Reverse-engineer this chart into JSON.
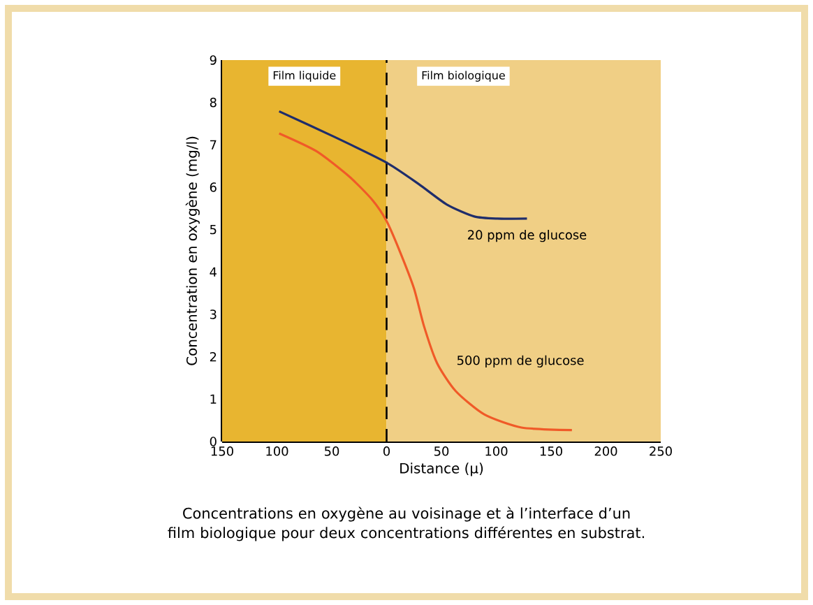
{
  "chart_data": {
    "type": "line",
    "xlabel": "Distance (µ)",
    "ylabel": "Concentration en oxygène (mg/l)",
    "xlim": [
      -150,
      250
    ],
    "xticks": [
      {
        "value": -150,
        "label": "150"
      },
      {
        "value": -100,
        "label": "100"
      },
      {
        "value": -50,
        "label": "50"
      },
      0,
      50,
      100,
      150,
      200,
      250
    ],
    "ylim": [
      0,
      9
    ],
    "yticks": [
      0,
      1,
      2,
      3,
      4,
      5,
      6,
      7,
      8,
      9
    ],
    "series": [
      {
        "name": "20 ppm de glucose",
        "color": "#1f2d6b",
        "x": [
          -98,
          -47,
          0,
          29,
          55,
          80,
          101,
          128
        ],
        "values": [
          7.79,
          7.18,
          6.58,
          6.08,
          5.59,
          5.31,
          5.26,
          5.26
        ]
      },
      {
        "name": "500 ppm de glucose",
        "color": "#f05a28",
        "x": [
          -98,
          -64,
          -34,
          -13,
          0,
          12,
          25,
          34,
          46,
          63,
          89,
          123,
          169
        ],
        "values": [
          7.27,
          6.85,
          6.25,
          5.7,
          5.2,
          4.49,
          3.61,
          2.73,
          1.85,
          1.19,
          0.64,
          0.33,
          0.27
        ]
      }
    ],
    "bands": [
      {
        "axis": "x",
        "from": -150,
        "to": 0,
        "label": "Film liquide",
        "color": "#e8b530"
      },
      {
        "axis": "x",
        "from": 0,
        "to": 250,
        "label": "Film biologique",
        "color": "#f0cf85"
      }
    ],
    "ref_lines": [
      {
        "axis": "x",
        "value": 0,
        "color": "#000000",
        "line_style": "dashed"
      }
    ],
    "annotations": [
      "Concentrations en oxygène au voisinage et à l’interface d’un film biologique pour deux concentrations différentes en substrat."
    ],
    "grid": false,
    "marker": "none",
    "line_style": "solid"
  }
}
